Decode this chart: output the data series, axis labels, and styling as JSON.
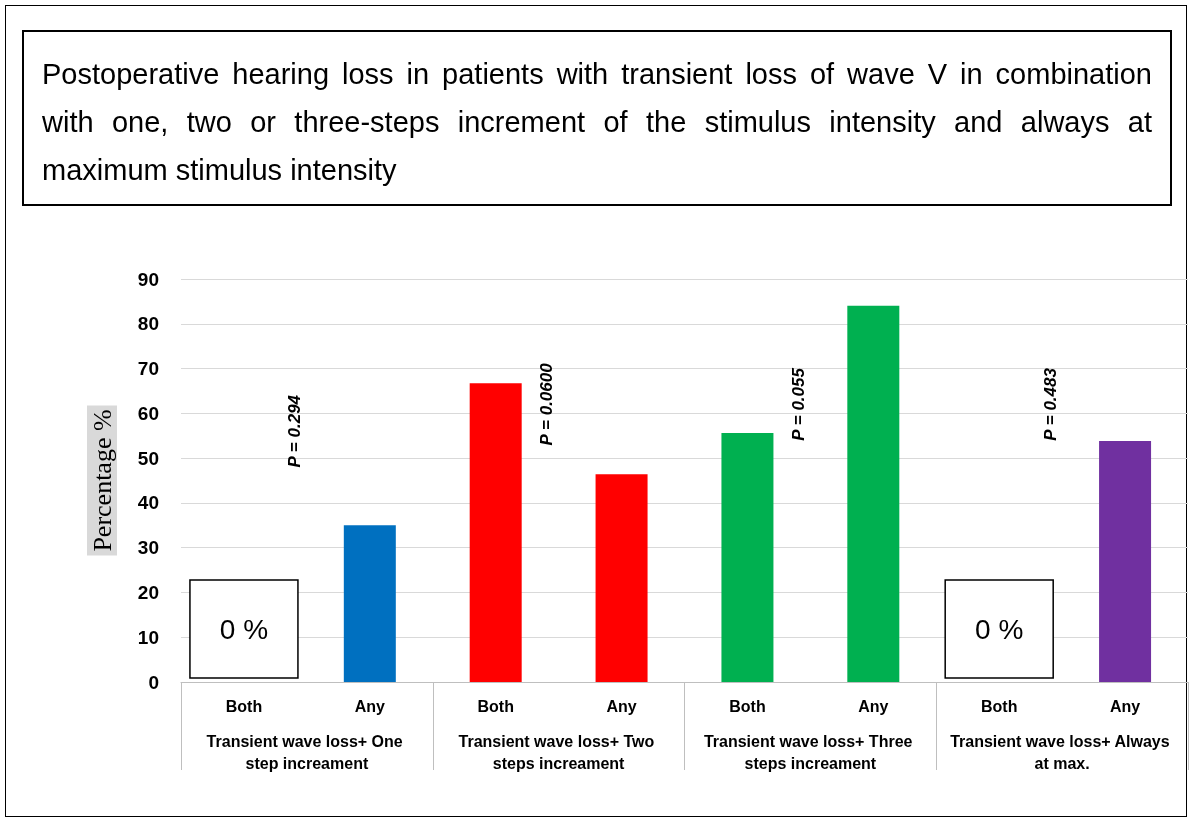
{
  "chart_data": {
    "type": "bar",
    "title": "Postoperative hearing loss in patients with transient loss of wave V in combination with one, two or three-steps increment of the stimulus intensity and always at maximum stimulus intensity",
    "ylabel": "Percentage %",
    "categories": [
      "Both",
      "Any",
      "Both",
      "Any",
      "Both",
      "Any",
      "Both",
      "Any"
    ],
    "values": [
      0,
      35,
      66.7,
      46.4,
      55.6,
      84,
      0,
      53.8
    ],
    "colors": [
      "#0070c0",
      "#0070c0",
      "#ff0000",
      "#ff0000",
      "#00b050",
      "#00b050",
      "#7030a0",
      "#7030a0"
    ],
    "ylim": [
      0,
      90
    ],
    "yticks": [
      0,
      10,
      20,
      30,
      40,
      50,
      60,
      70,
      80,
      90
    ],
    "grid": "y",
    "annotations": [
      "P = 0.294",
      "P = 0.0600",
      "P = 0.055",
      "P = 0.483",
      "0 %",
      "0 %",
      "Transient wave loss+ One step increament",
      "Transient wave loss+ Two steps increament",
      "Transient wave loss+ Three steps increament",
      "Transient wave loss+ Always at max."
    ]
  }
}
